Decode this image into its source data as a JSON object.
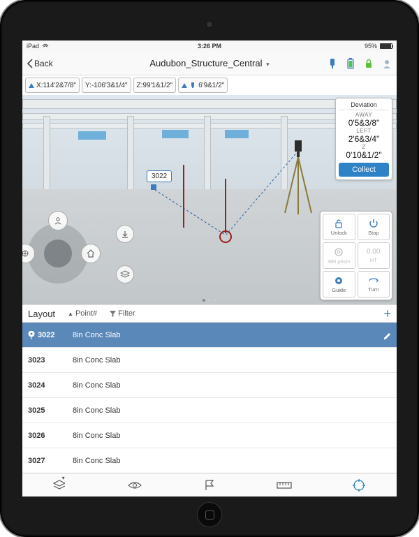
{
  "statusbar": {
    "carrier": "iPad",
    "time": "3:26 PM",
    "battery_pct": "95%"
  },
  "nav": {
    "back": "Back",
    "title": "Audubon_Structure_Central"
  },
  "coords": {
    "x": "X:114'2&7/8\"",
    "y": "Y:-106'3&1/4\"",
    "z": "Z:99'1&1/2\"",
    "dist": "6'9&1/2\""
  },
  "deviation": {
    "header": "Deviation",
    "away_lbl": "AWAY",
    "away_val": "0'5&3/8\"",
    "left_lbl": "LEFT",
    "left_val": "2'6&3/4\"",
    "z_lbl": "Z",
    "z_val": "0'10&1/2\"",
    "collect": "Collect"
  },
  "tools": {
    "unlock": "Unlock",
    "stop": "Stop",
    "prism": "360 prism",
    "ht": "HT",
    "ht_val": "0.00",
    "guide": "Guide",
    "turn": "Turn"
  },
  "marker": {
    "label": "3022"
  },
  "list": {
    "title": "Layout",
    "sort_lbl": "Point#",
    "filter_lbl": "Filter",
    "rows": [
      {
        "pt": "3022",
        "desc": "8in Conc Slab",
        "selected": true
      },
      {
        "pt": "3023",
        "desc": "8in Conc Slab",
        "selected": false
      },
      {
        "pt": "3024",
        "desc": "8in Conc Slab",
        "selected": false
      },
      {
        "pt": "3025",
        "desc": "8in Conc Slab",
        "selected": false
      },
      {
        "pt": "3026",
        "desc": "8in Conc Slab",
        "selected": false
      },
      {
        "pt": "3027",
        "desc": "8in Conc Slab",
        "selected": false
      }
    ]
  },
  "colors": {
    "accent": "#3b7dbf",
    "sel_row": "#5a88b8"
  }
}
